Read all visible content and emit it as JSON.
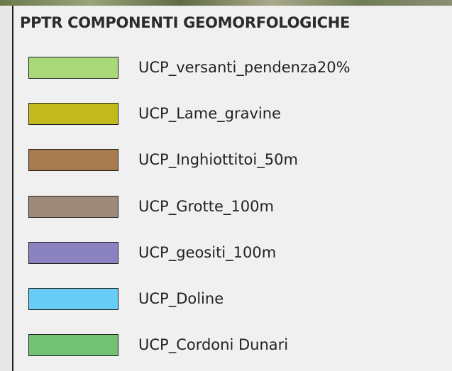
{
  "legend": {
    "title": "PPTR COMPONENTI GEOMORFOLOGICHE",
    "items": [
      {
        "label": "UCP_versanti_pendenza20%",
        "color": "#a9d879"
      },
      {
        "label": "UCP_Lame_gravine",
        "color": "#c3ba1d"
      },
      {
        "label": "UCP_Inghiottitoi_50m",
        "color": "#a87a50"
      },
      {
        "label": "UCP_Grotte_100m",
        "color": "#9f8a79"
      },
      {
        "label": "UCP_geositi_100m",
        "color": "#8b82c1"
      },
      {
        "label": "UCP_Doline",
        "color": "#67cdf6"
      },
      {
        "label": "UCP_Cordoni Dunari",
        "color": "#73c172"
      }
    ]
  }
}
